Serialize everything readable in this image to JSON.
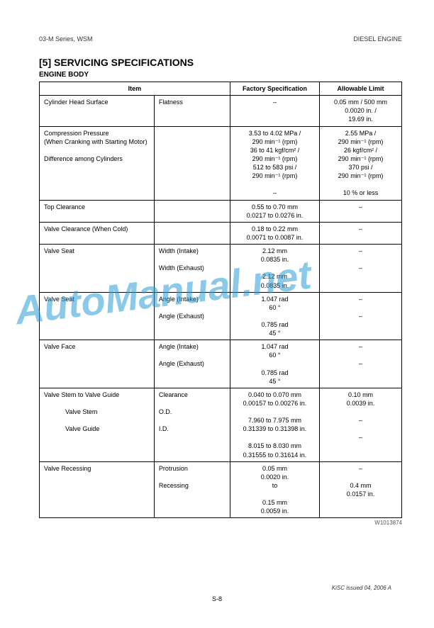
{
  "header": {
    "left": "03-M Series, WSM",
    "right": "DIESEL  ENGINE"
  },
  "section_title": "[5]   SERVICING  SPECIFICATIONS",
  "subsection_title": "ENGINE BODY",
  "table": {
    "columns": {
      "item": "Item",
      "factory": "Factory Specification",
      "limit": "Allowable Limit"
    },
    "rows": [
      {
        "item1": "Cylinder Head Surface",
        "item2": "Flatness",
        "factory": "–",
        "limit": "0.05 mm / 500 mm\n0.0020 in. /\n19.69 in."
      },
      {
        "item1": "Compression Pressure\n(When Cranking with Starting Motor)",
        "item2": "",
        "factory": "3.53 to 4.02 MPa /\n290 min⁻¹ (rpm)\n36 to 41 kgf/cm² /\n290 min⁻¹ (rpm)\n512 to 583 psi /\n290 min⁻¹ (rpm)",
        "limit": "2.55 MPa /\n290 min⁻¹ (rpm)\n26 kgf/cm² /\n290 min⁻¹ (rpm)\n370 psi /\n290 min⁻¹ (rpm)",
        "item1b": "Difference among Cylinders",
        "factoryb": "–",
        "limitb": "10 % or less"
      },
      {
        "item1": "Top Clearance",
        "item2": "",
        "factory": "0.55 to 0.70 mm\n0.0217 to 0.0276 in.",
        "limit": "–"
      },
      {
        "item1": "Valve Clearance (When Cold)",
        "item2": "",
        "factory": "0.18 to 0.22 mm\n0.0071 to 0.0087 in.",
        "limit": "–"
      },
      {
        "item1": "Valve Seat",
        "item2": "Width (Intake)",
        "factory": "2.12 mm\n0.0835 in.",
        "limit": "–",
        "item2b": "Width (Exhaust)",
        "factoryb": "2.12 mm\n0.0835 in.",
        "limitb": "–"
      },
      {
        "item1": "Valve Seat",
        "item2": "Angle (Intake)",
        "factory": "1.047 rad\n60 °",
        "limit": "–",
        "item2b": "Angle (Exhaust)",
        "factoryb": "0.785 rad\n45 °",
        "limitb": "–"
      },
      {
        "item1": "Valve Face",
        "item2": "Angle (Intake)",
        "factory": "1.047 rad\n60 °",
        "limit": "–",
        "item2b": "Angle (Exhaust)",
        "factoryb": "0.785 rad\n45 °",
        "limitb": "–"
      },
      {
        "item1": "Valve Stem to Valve Guide",
        "item2": "Clearance",
        "factory": "0.040 to 0.070 mm\n0.00157 to 0.00276 in.",
        "limit": "0.10 mm\n0.0039 in.",
        "item1b": "Valve Stem",
        "item2b": "O.D.",
        "factoryb": "7.960 to 7.975 mm\n0.31339 to 0.31398 in.",
        "limitb": "–",
        "item1c": "Valve Guide",
        "item2c": "I.D.",
        "factoryc": "8.015 to 8.030 mm\n0.31555 to 0.31614 in.",
        "limitc": "–"
      },
      {
        "item1": "Valve Recessing",
        "item2": "Protrusion",
        "factory": "0.05 mm\n0.0020 in.\nto",
        "limit": "–",
        "item2b": "Recessing",
        "factoryb": "0.15 mm\n0.0059 in.",
        "limitb": "0.4 mm\n0.0157 in."
      }
    ],
    "code": "W1013874"
  },
  "watermark": "AutoManual.net",
  "footer": {
    "page": "S-8",
    "issued": "KiSC issued 04, 2006 A"
  }
}
